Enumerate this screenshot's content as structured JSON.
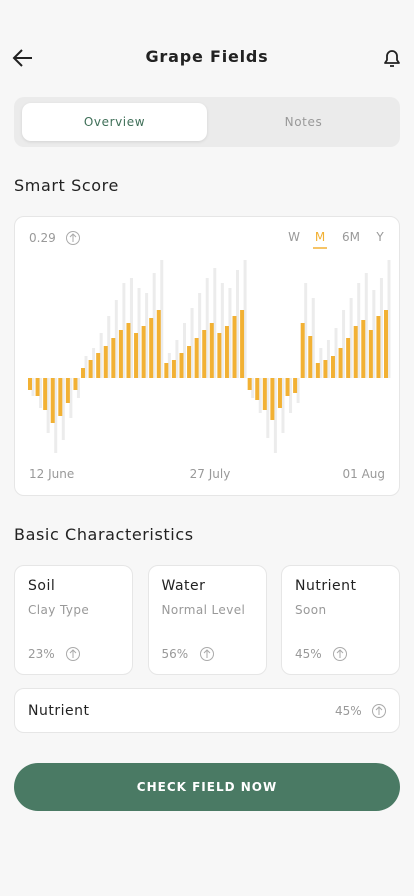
{
  "header": {
    "title": "Grape Fields"
  },
  "tabs": {
    "items": [
      "Overview",
      "Notes"
    ],
    "active": "Overview"
  },
  "smart_score": {
    "title": "Smart Score",
    "value": "0.29",
    "periods": [
      "W",
      "M",
      "6M",
      "Y"
    ],
    "active_period": "M",
    "chart_data": {
      "type": "bar",
      "x_labels": [
        "12 June",
        "27 July",
        "01 Aug"
      ],
      "ylim": [
        -80,
        120
      ],
      "series": [
        {
          "color": "#ececec",
          "values": [
            -18,
            -30,
            -55,
            -75,
            -62,
            -40,
            -20,
            22,
            30,
            45,
            62,
            78,
            95,
            100,
            90,
            85,
            105,
            118,
            25,
            38,
            55,
            70,
            85,
            100,
            110,
            95,
            90,
            108,
            118,
            -20,
            -35,
            -60,
            -75,
            -55,
            -35,
            -25,
            95,
            80,
            30,
            38,
            50,
            68,
            80,
            95,
            105,
            88,
            100,
            118
          ]
        },
        {
          "color": "#f2b134",
          "values": [
            -12,
            -18,
            -32,
            -45,
            -38,
            -25,
            -12,
            10,
            18,
            25,
            32,
            40,
            48,
            55,
            45,
            52,
            60,
            68,
            15,
            18,
            25,
            32,
            40,
            48,
            55,
            45,
            52,
            62,
            68,
            -12,
            -22,
            -32,
            -42,
            -30,
            -18,
            -15,
            55,
            42,
            15,
            18,
            22,
            30,
            40,
            52,
            58,
            48,
            62,
            68
          ]
        }
      ]
    }
  },
  "characteristics": {
    "title": "Basic Characteristics",
    "cards": [
      {
        "title": "Soil",
        "subtitle": "Clay Type",
        "value": "23%"
      },
      {
        "title": "Water",
        "subtitle": "Normal Level",
        "value": "56%"
      },
      {
        "title": "Nutrient",
        "subtitle": "Soon",
        "value": "45%"
      }
    ],
    "wide_card": {
      "title": "Nutrient",
      "value": "45%"
    }
  },
  "button": {
    "label": "CHECK FIELD NOW"
  }
}
